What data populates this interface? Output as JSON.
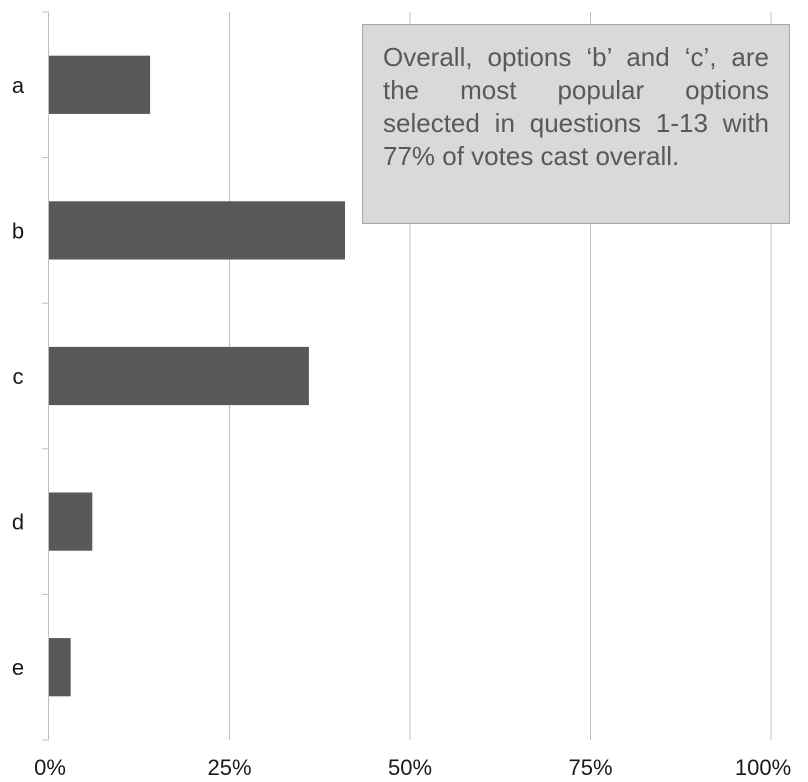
{
  "chart_data": {
    "type": "bar",
    "orientation": "horizontal",
    "categories": [
      "a",
      "b",
      "c",
      "d",
      "e"
    ],
    "values": [
      14,
      41,
      36,
      6,
      3
    ],
    "xlim": [
      0,
      100
    ],
    "x_ticks": [
      "0%",
      "25%",
      "50%",
      "75%",
      "100%"
    ],
    "title": "",
    "xlabel": "",
    "ylabel": "",
    "grid": true,
    "legend": "none",
    "bar_color": "#595959",
    "grid_color": "#bfbfbf",
    "annotation": "Overall, options ‘b’ and ‘c’, are the most popular options selected in questions 1-13 with 77% of votes cast overall."
  }
}
